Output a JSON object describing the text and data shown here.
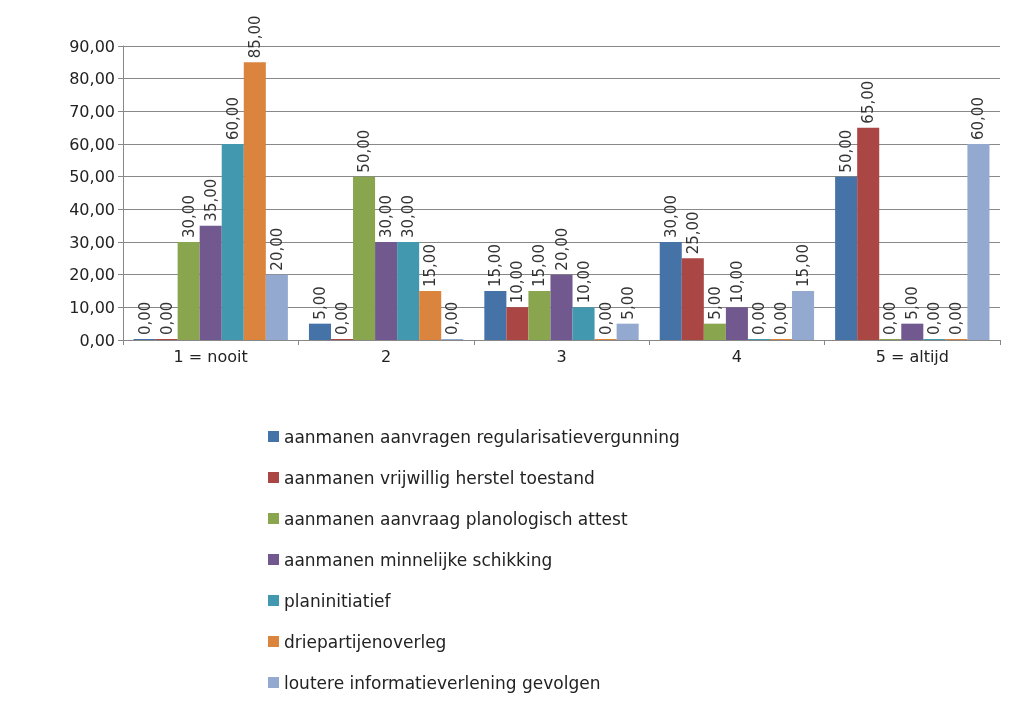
{
  "chart_data": {
    "type": "bar",
    "categories": [
      "1 = nooit",
      "2",
      "3",
      "4",
      "5 = altijd"
    ],
    "series": [
      {
        "name": "aanmanen aanvragen regularisatievergunning",
        "color": "#4572a7",
        "values": [
          0,
          5,
          15,
          30,
          50
        ],
        "value_labels": [
          "0,00",
          "5,00",
          "15,00",
          "30,00",
          "50,00"
        ]
      },
      {
        "name": "aanmanen vrijwillig herstel toestand",
        "color": "#aa4643",
        "values": [
          0,
          0,
          10,
          25,
          65
        ],
        "value_labels": [
          "0,00",
          "0,00",
          "10,00",
          "25,00",
          "65,00"
        ]
      },
      {
        "name": "aanmanen aanvraag planologisch attest",
        "color": "#89a54e",
        "values": [
          30,
          50,
          15,
          5,
          0
        ],
        "value_labels": [
          "30,00",
          "50,00",
          "15,00",
          "5,00",
          "0,00"
        ]
      },
      {
        "name": "aanmanen minnelijke schikking",
        "color": "#71588f",
        "values": [
          35,
          30,
          20,
          10,
          5
        ],
        "value_labels": [
          "35,00",
          "30,00",
          "20,00",
          "10,00",
          "5,00"
        ]
      },
      {
        "name": "planinitiatief",
        "color": "#4198af",
        "values": [
          60,
          30,
          10,
          0,
          0
        ],
        "value_labels": [
          "60,00",
          "30,00",
          "10,00",
          "0,00",
          "0,00"
        ]
      },
      {
        "name": "driepartijenoverleg",
        "color": "#db843d",
        "values": [
          85,
          15,
          0,
          0,
          0
        ],
        "value_labels": [
          "85,00",
          "15,00",
          "0,00",
          "0,00",
          "0,00"
        ]
      },
      {
        "name": "loutere informatieverlening gevolgen",
        "color": "#93a9cf",
        "values": [
          20,
          0,
          5,
          15,
          60
        ],
        "value_labels": [
          "20,00",
          "0,00",
          "5,00",
          "15,00",
          "60,00"
        ]
      }
    ],
    "ylim": [
      0,
      90
    ],
    "yticks": [
      {
        "value": 0,
        "label": "0,00"
      },
      {
        "value": 10,
        "label": "10,00"
      },
      {
        "value": 20,
        "label": "20,00"
      },
      {
        "value": 30,
        "label": "30,00"
      },
      {
        "value": 40,
        "label": "40,00"
      },
      {
        "value": 50,
        "label": "50,00"
      },
      {
        "value": 60,
        "label": "60,00"
      },
      {
        "value": 70,
        "label": "70,00"
      },
      {
        "value": 80,
        "label": "80,00"
      },
      {
        "value": 90,
        "label": "90,00"
      }
    ],
    "grid": "y",
    "legend": "bottom"
  }
}
